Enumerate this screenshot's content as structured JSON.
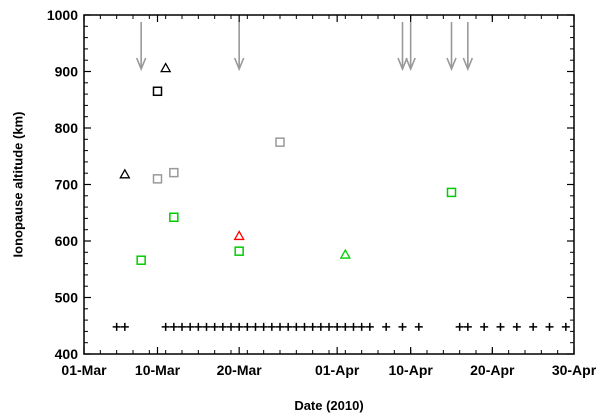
{
  "chart_data": {
    "type": "scatter",
    "title": "",
    "xlabel": "Date (2010)",
    "ylabel": "Ionopause altitude (km)",
    "x_type": "date",
    "xlim": [
      "2010-03-01",
      "2010-04-30"
    ],
    "ylim": [
      400,
      1000
    ],
    "x_ticks": [
      {
        "date": "2010-03-01",
        "label": "01-Mar"
      },
      {
        "date": "2010-03-10",
        "label": "10-Mar"
      },
      {
        "date": "2010-03-20",
        "label": "20-Mar"
      },
      {
        "date": "2010-04-01",
        "label": "01-Apr"
      },
      {
        "date": "2010-04-10",
        "label": "10-Apr"
      },
      {
        "date": "2010-04-20",
        "label": "20-Apr"
      },
      {
        "date": "2010-04-30",
        "label": "30-Apr"
      }
    ],
    "y_ticks": [
      400,
      500,
      600,
      700,
      800,
      900,
      1000
    ],
    "grid": false,
    "series": [
      {
        "marker": "triangle",
        "color": "#000000",
        "points": [
          {
            "x": "2010-03-06",
            "y": 718
          },
          {
            "x": "2010-03-11",
            "y": 906
          }
        ]
      },
      {
        "marker": "triangle",
        "color": "#ff0000",
        "points": [
          {
            "x": "2010-03-20",
            "y": 609
          }
        ]
      },
      {
        "marker": "triangle",
        "color": "#00cc00",
        "points": [
          {
            "x": "2010-04-02",
            "y": 576
          }
        ]
      },
      {
        "marker": "square",
        "color": "#000000",
        "points": [
          {
            "x": "2010-03-10",
            "y": 865
          }
        ]
      },
      {
        "marker": "square",
        "color": "#999999",
        "points": [
          {
            "x": "2010-03-10",
            "y": 710
          },
          {
            "x": "2010-03-12",
            "y": 721
          },
          {
            "x": "2010-03-25",
            "y": 775
          }
        ]
      },
      {
        "marker": "square",
        "color": "#00cc00",
        "points": [
          {
            "x": "2010-03-08",
            "y": 566
          },
          {
            "x": "2010-03-12",
            "y": 642
          },
          {
            "x": "2010-03-20",
            "y": 582
          },
          {
            "x": "2010-04-15",
            "y": 686
          }
        ]
      },
      {
        "marker": "plus",
        "color": "#000000",
        "points": [
          {
            "x": "2010-03-05",
            "y": 448
          },
          {
            "x": "2010-03-06",
            "y": 448
          },
          {
            "x": "2010-03-11",
            "y": 448
          },
          {
            "x": "2010-03-12",
            "y": 448
          },
          {
            "x": "2010-03-13",
            "y": 448
          },
          {
            "x": "2010-03-14",
            "y": 448
          },
          {
            "x": "2010-03-15",
            "y": 448
          },
          {
            "x": "2010-03-16",
            "y": 448
          },
          {
            "x": "2010-03-17",
            "y": 448
          },
          {
            "x": "2010-03-18",
            "y": 448
          },
          {
            "x": "2010-03-19",
            "y": 448
          },
          {
            "x": "2010-03-20",
            "y": 448
          },
          {
            "x": "2010-03-21",
            "y": 448
          },
          {
            "x": "2010-03-22",
            "y": 448
          },
          {
            "x": "2010-03-23",
            "y": 448
          },
          {
            "x": "2010-03-24",
            "y": 448
          },
          {
            "x": "2010-03-25",
            "y": 448
          },
          {
            "x": "2010-03-26",
            "y": 448
          },
          {
            "x": "2010-03-27",
            "y": 448
          },
          {
            "x": "2010-03-28",
            "y": 448
          },
          {
            "x": "2010-03-29",
            "y": 448
          },
          {
            "x": "2010-03-30",
            "y": 448
          },
          {
            "x": "2010-03-31",
            "y": 448
          },
          {
            "x": "2010-04-01",
            "y": 448
          },
          {
            "x": "2010-04-02",
            "y": 448
          },
          {
            "x": "2010-04-03",
            "y": 448
          },
          {
            "x": "2010-04-04",
            "y": 448
          },
          {
            "x": "2010-04-05",
            "y": 448
          },
          {
            "x": "2010-04-07",
            "y": 448
          },
          {
            "x": "2010-04-09",
            "y": 448
          },
          {
            "x": "2010-04-11",
            "y": 448
          },
          {
            "x": "2010-04-16",
            "y": 448
          },
          {
            "x": "2010-04-17",
            "y": 448
          },
          {
            "x": "2010-04-19",
            "y": 448
          },
          {
            "x": "2010-04-21",
            "y": 448
          },
          {
            "x": "2010-04-23",
            "y": 448
          },
          {
            "x": "2010-04-25",
            "y": 448
          },
          {
            "x": "2010-04-27",
            "y": 448
          },
          {
            "x": "2010-04-29",
            "y": 448
          }
        ]
      }
    ],
    "arrows": {
      "color": "#999999",
      "direction": "down",
      "dates": [
        "2010-03-08",
        "2010-03-20",
        "2010-04-09",
        "2010-04-10",
        "2010-04-15",
        "2010-04-17"
      ]
    }
  }
}
